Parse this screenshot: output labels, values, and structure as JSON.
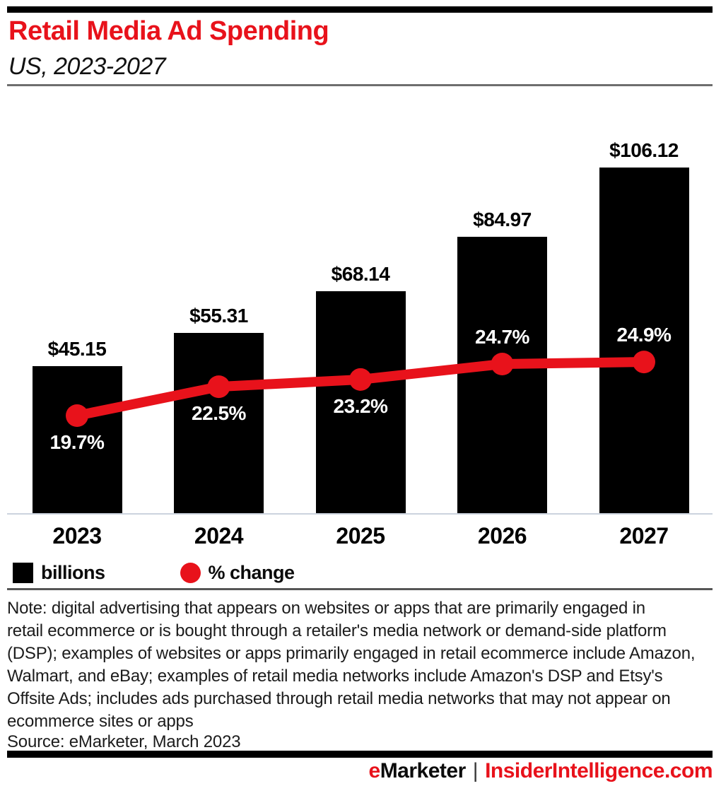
{
  "header": {
    "title": "Retail Media Ad Spending",
    "subtitle": "US, 2023-2027"
  },
  "chart_data": {
    "type": "bar",
    "subtype": "bar-line-combo",
    "title": "Retail Media Ad Spending",
    "subtitle": "US, 2023-2027",
    "categories": [
      "2023",
      "2024",
      "2025",
      "2026",
      "2027"
    ],
    "series": [
      {
        "name": "billions",
        "type": "bar",
        "unit": "US$ billions",
        "color": "#000000",
        "values": [
          45.15,
          55.31,
          68.14,
          84.97,
          106.12
        ],
        "labels": [
          "$45.15",
          "$55.31",
          "$68.14",
          "$84.97",
          "$106.12"
        ]
      },
      {
        "name": "% change",
        "type": "line",
        "color": "#e8121b",
        "values": [
          19.7,
          22.5,
          23.2,
          24.7,
          24.9
        ],
        "labels": [
          "19.7%",
          "22.5%",
          "23.2%",
          "24.7%",
          "24.9%"
        ]
      }
    ],
    "legend_position": "bottom-left",
    "grid": false
  },
  "legend": {
    "items": [
      {
        "label": "billions",
        "marker": "square",
        "color": "#000000"
      },
      {
        "label": "% change",
        "marker": "circle",
        "color": "#e8121b"
      }
    ]
  },
  "note": {
    "lines": [
      "Note: digital advertising that appears on websites or apps that are primarily engaged in",
      "retail ecommerce or is bought through a retailer's media network or demand-side platform",
      "(DSP); examples of websites or apps primarily engaged in retail ecommerce include Amazon,",
      "Walmart, and eBay; examples of retail media networks include Amazon's DSP and Etsy's",
      "Offsite Ads; includes ads purchased through retail media networks that may not appear on",
      "ecommerce sites or apps"
    ]
  },
  "source": "Source: eMarketer, March 2023",
  "footer": {
    "brand_accent_letter": "e",
    "brand_rest": "Marketer",
    "separator": "|",
    "site": "InsiderIntelligence.com"
  },
  "colors": {
    "accent_red": "#e8121b",
    "bar_black": "#000000",
    "pct_label_white": "#ffffff",
    "axis_line": "#ccd3de"
  }
}
